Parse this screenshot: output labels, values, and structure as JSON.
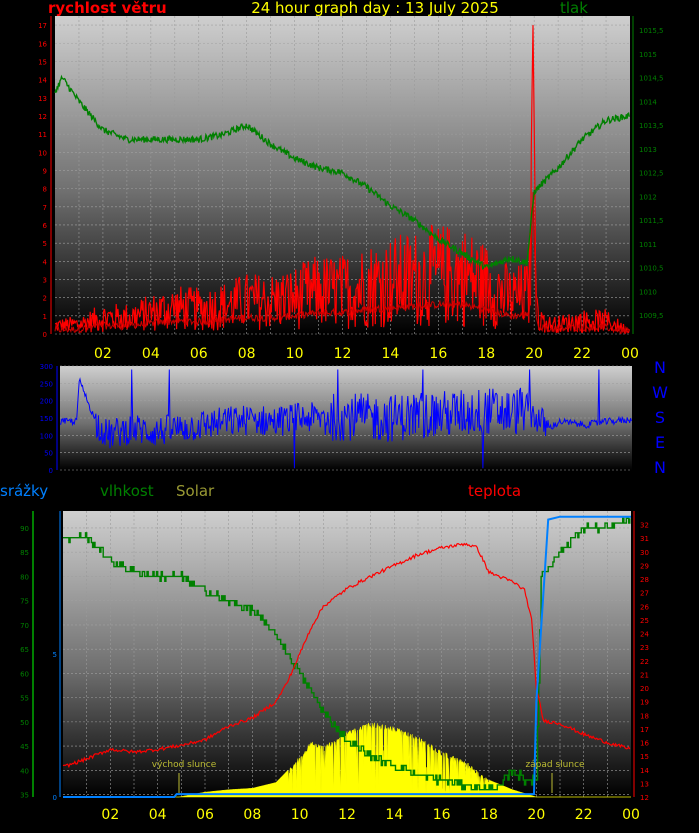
{
  "header": {
    "wind_label": "rychlost větru",
    "title": "24 hour graph day : 13 July 2025",
    "pressure_label": "tlak"
  },
  "time_ticks": [
    "02",
    "04",
    "06",
    "08",
    "10",
    "12",
    "14",
    "16",
    "18",
    "20",
    "22",
    "00"
  ],
  "direction_labels": [
    "N",
    "W",
    "S",
    "E",
    "N"
  ],
  "bottom_labels": {
    "rain": "srážky",
    "humidity": "vlhkost",
    "solar": "Solar",
    "temperature": "teplota",
    "sunrise": "východ slunce",
    "sunset": "západ slunce"
  },
  "colors": {
    "wind": "#ff0000",
    "pressure": "#008000",
    "direction": "#0000ff",
    "humidity": "#008000",
    "temperature": "#ff0000",
    "solar": "#ffff00",
    "rain": "#0080ff",
    "ticks": "#ffff00"
  },
  "chart_data": [
    {
      "type": "line",
      "x_unit": "hour",
      "xlim": [
        0,
        24
      ],
      "y_left_ticks": [
        0,
        1,
        2,
        3,
        4,
        5,
        6,
        7,
        8,
        9,
        10,
        11,
        12,
        13,
        14,
        15,
        16,
        17
      ],
      "ylim_left": [
        0,
        17.5
      ],
      "y_right_ticks": [
        "1009,5",
        "1010",
        "1010,5",
        "1011",
        "1011,5",
        "1012",
        "1012,5",
        "1013",
        "1013,5",
        "1014",
        "1014,5",
        "1015",
        "1015,5"
      ],
      "ylim_right": [
        1009.1,
        1015.8
      ],
      "series": [
        {
          "name": "rychlost větru",
          "axis": "left",
          "x": [
            0,
            1,
            2,
            3,
            4,
            5,
            6,
            7,
            8,
            9,
            10,
            11,
            12,
            13,
            14,
            15,
            16,
            17,
            18,
            19,
            19.8,
            19.95,
            20.1,
            20.5,
            21,
            22,
            23,
            24
          ],
          "y": [
            0.5,
            0.6,
            1,
            1,
            1.3,
            1.6,
            1.5,
            1.7,
            2,
            2,
            2.2,
            2.6,
            2.6,
            3,
            3.2,
            3.4,
            3.6,
            3.6,
            3,
            2.2,
            2.4,
            17,
            1.2,
            0.6,
            0.6,
            0.8,
            0.8,
            0.2
          ]
        },
        {
          "name": "tlak",
          "axis": "right",
          "x": [
            0,
            0.3,
            1,
            2,
            3,
            4,
            5,
            6,
            7,
            8,
            9,
            10,
            11,
            12,
            13,
            14,
            15,
            16,
            17,
            18,
            19,
            19.7,
            20,
            21,
            22,
            23,
            24
          ],
          "y": [
            1014.2,
            1014.5,
            1014,
            1013.4,
            1013.2,
            1013.2,
            1013.2,
            1013.2,
            1013.3,
            1013.5,
            1013.1,
            1012.8,
            1012.6,
            1012.5,
            1012.2,
            1011.8,
            1011.5,
            1011.1,
            1010.8,
            1010.5,
            1010.7,
            1010.6,
            1012.1,
            1012.6,
            1013.2,
            1013.6,
            1013.7
          ]
        }
      ]
    },
    {
      "type": "line",
      "x_unit": "hour",
      "xlim": [
        0,
        24
      ],
      "y_ticks": [
        0,
        50,
        100,
        150,
        200,
        250,
        300
      ],
      "ylim": [
        0,
        300
      ],
      "series": [
        {
          "name": "směr větru",
          "x": [
            0,
            0.7,
            0.8,
            1.5,
            2,
            3,
            4,
            5,
            6,
            7,
            8,
            9,
            10,
            11,
            12,
            13,
            14,
            15,
            16,
            17,
            18,
            19,
            19.5,
            20,
            20.5,
            21,
            22,
            23,
            24
          ],
          "y": [
            140,
            140,
            260,
            140,
            100,
            120,
            110,
            120,
            130,
            140,
            145,
            140,
            150,
            150,
            155,
            150,
            150,
            160,
            160,
            165,
            170,
            165,
            180,
            150,
            120,
            140,
            130,
            140,
            145
          ]
        }
      ]
    },
    {
      "type": "line",
      "x_unit": "hour",
      "xlim": [
        0,
        24
      ],
      "y_left_ticks": [
        35,
        40,
        45,
        50,
        55,
        60,
        65,
        70,
        75,
        80,
        85,
        90
      ],
      "ylim_left": [
        34.5,
        93.5
      ],
      "rain_ticks": [
        0,
        5
      ],
      "ylim_rain": [
        0,
        10
      ],
      "y_right_ticks": [
        12,
        13,
        14,
        15,
        16,
        17,
        18,
        19,
        20,
        21,
        22,
        23,
        24,
        25,
        26,
        27,
        28,
        29,
        30,
        31,
        32
      ],
      "ylim_right": [
        12,
        33
      ],
      "series": [
        {
          "name": "vlhkost",
          "axis": "left",
          "x": [
            0,
            1,
            1.5,
            2,
            3,
            4,
            5,
            6,
            7,
            8,
            9,
            10,
            11,
            12,
            13,
            14,
            15,
            16,
            17,
            18,
            18.5,
            19,
            19.5,
            20,
            20.2,
            21,
            22,
            23,
            24
          ],
          "y": [
            88,
            88,
            86,
            83,
            81,
            80,
            80,
            77,
            75,
            73,
            68,
            60,
            52,
            46,
            43,
            41,
            39,
            38,
            37,
            36,
            37,
            40,
            38,
            38,
            80,
            85,
            90,
            90,
            92
          ]
        },
        {
          "name": "teplota",
          "axis": "right",
          "x": [
            0,
            1,
            2,
            3,
            4,
            5,
            6,
            7,
            8,
            9,
            9.5,
            10,
            10.5,
            11,
            12,
            13,
            14,
            15,
            16,
            17,
            17.5,
            18,
            19,
            19.5,
            19.8,
            20,
            20.3,
            21,
            22,
            23,
            24
          ],
          "y": [
            14.2,
            14.8,
            15.5,
            15.3,
            15.5,
            15.8,
            16.2,
            17.2,
            17.8,
            19,
            20.5,
            22.5,
            24.5,
            26,
            27.3,
            28.2,
            29,
            29.8,
            30.3,
            30.6,
            30.3,
            28.5,
            27.8,
            27.2,
            25,
            20,
            17.6,
            17.4,
            16.6,
            16,
            15.5
          ]
        },
        {
          "name": "Solar",
          "axis": "left",
          "x": [
            0,
            4.9,
            6,
            7,
            8,
            9,
            9.5,
            10,
            10.5,
            11,
            12,
            13,
            14,
            15,
            16,
            17,
            18,
            19,
            20,
            24
          ],
          "y": [
            34.5,
            34.5,
            35.5,
            36,
            36.3,
            37.5,
            40,
            43,
            46,
            45,
            48,
            50,
            49,
            47,
            44,
            42,
            38,
            36,
            34.5,
            34.5
          ]
        },
        {
          "name": "srážky",
          "axis": "rain",
          "x": [
            0,
            4.7,
            4.8,
            19.9,
            20,
            20.5,
            21,
            24
          ],
          "y": [
            0,
            0,
            0.1,
            0.1,
            3.3,
            9.7,
            9.8,
            9.8
          ]
        }
      ]
    }
  ]
}
